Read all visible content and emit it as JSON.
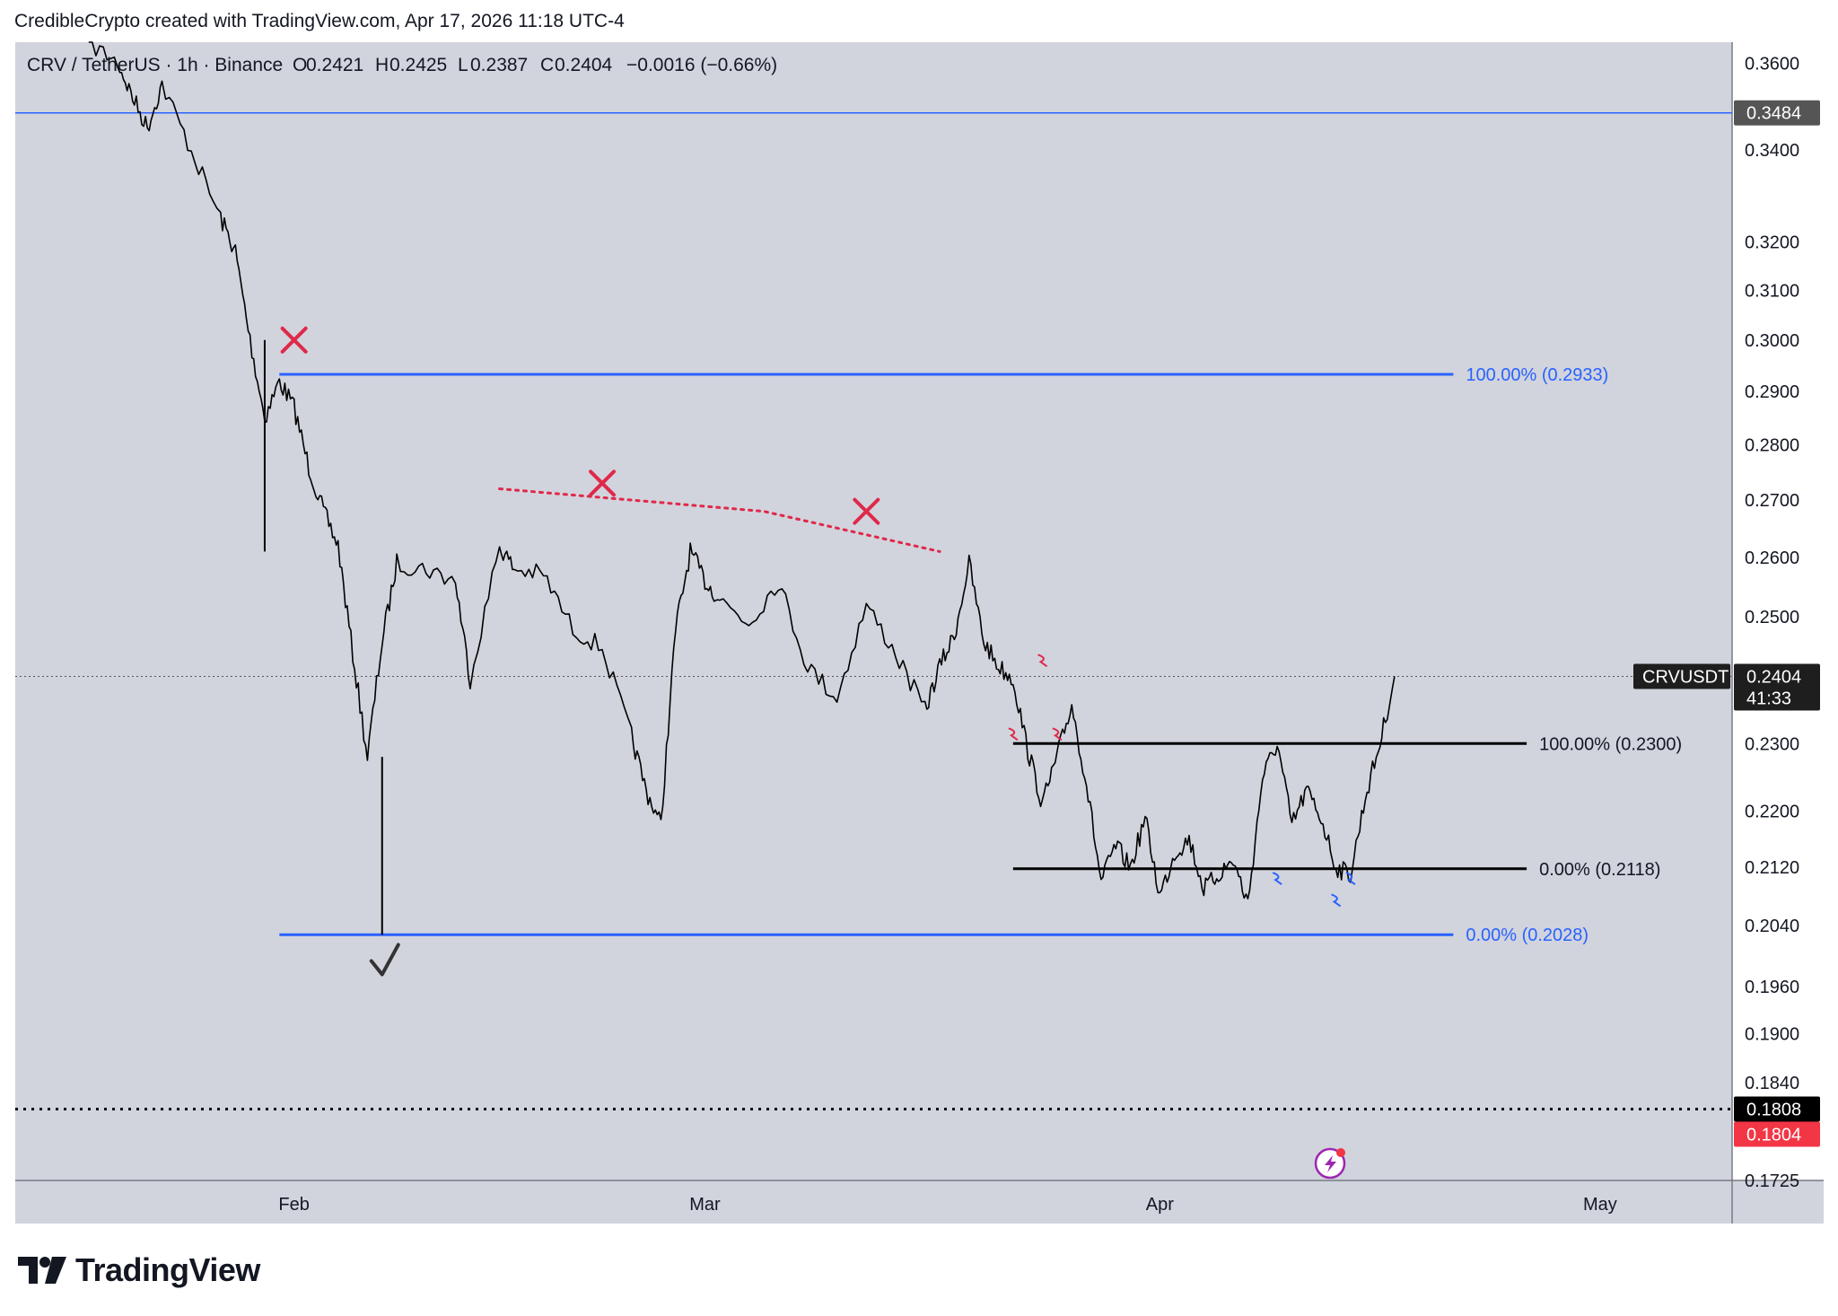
{
  "header": {
    "attribution": "CredibleCrypto created with TradingView.com, Apr 17, 2026 11:18 UTC-4"
  },
  "legend": {
    "symbol": "CRV / TetherUS · 1h · Binance",
    "open_label": "O",
    "open": "0.2421",
    "high_label": "H",
    "high": "0.2425",
    "low_label": "L",
    "low": "0.2387",
    "close_label": "C",
    "close": "0.2404",
    "change": "−0.0016 (−0.66%)"
  },
  "logo": {
    "text": "TradingView"
  },
  "price_badges": {
    "level_high": "0.3484",
    "current_symbol": "CRVUSDT",
    "current_price": "0.2404",
    "countdown": "41:33",
    "level_low_1": "0.1808",
    "level_low_2": "0.1804"
  },
  "colors": {
    "background": "#d1d4dc",
    "candle": "#000000",
    "blue_fib": "#2962ff",
    "black_fib": "#000000",
    "annotation_red": "#e0284a",
    "annotation_blue": "#2962ff",
    "badge_dark": "#555555",
    "badge_black": "#000000",
    "badge_red": "#f23645",
    "lightning": "#9c27b0"
  },
  "chart_data": {
    "type": "line",
    "title": "CRV / TetherUS · 1h · Binance",
    "xlabel": "",
    "ylabel": "",
    "y_scale": "log",
    "ylim": [
      0.1725,
      0.365
    ],
    "yticks": [
      "0.3600",
      "0.3400",
      "0.3200",
      "0.3100",
      "0.3000",
      "0.2900",
      "0.2800",
      "0.2700",
      "0.2600",
      "0.2500",
      "0.2300",
      "0.2200",
      "0.2120",
      "0.2040",
      "0.1960",
      "0.1900",
      "0.1840",
      "0.1725"
    ],
    "xticks": [
      "Feb",
      "Mar",
      "Apr",
      "May"
    ],
    "xlim": [
      "2026-01-13",
      "2026-05-10"
    ],
    "grid": false,
    "series": [
      {
        "x": [
          "2026-01-18",
          "2026-01-20",
          "2026-01-21",
          "2026-01-22",
          "2026-01-23",
          "2026-01-25",
          "2026-01-27",
          "2026-01-28",
          "2026-01-29",
          "2026-01-30",
          "2026-01-31",
          "2026-02-01",
          "2026-02-02",
          "2026-02-03",
          "2026-02-04",
          "2026-02-05",
          "2026-02-06",
          "2026-02-07",
          "2026-02-08",
          "2026-02-10",
          "2026-02-12",
          "2026-02-13",
          "2026-02-15",
          "2026-02-16",
          "2026-02-18",
          "2026-02-20",
          "2026-02-22",
          "2026-02-24",
          "2026-02-25",
          "2026-02-26",
          "2026-02-27",
          "2026-02-28",
          "2026-03-01",
          "2026-03-02",
          "2026-03-04",
          "2026-03-06",
          "2026-03-08",
          "2026-03-10",
          "2026-03-12",
          "2026-03-14",
          "2026-03-16",
          "2026-03-17",
          "2026-03-18",
          "2026-03-19",
          "2026-03-20",
          "2026-03-21",
          "2026-03-22",
          "2026-03-23",
          "2026-03-24",
          "2026-03-25",
          "2026-03-26",
          "2026-03-27",
          "2026-03-28",
          "2026-03-29",
          "2026-03-30",
          "2026-03-31",
          "2026-04-01",
          "2026-04-02",
          "2026-04-03",
          "2026-04-04",
          "2026-04-05",
          "2026-04-06",
          "2026-04-07",
          "2026-04-08",
          "2026-04-09",
          "2026-04-10",
          "2026-04-11",
          "2026-04-12",
          "2026-04-13",
          "2026-04-14",
          "2026-04-15",
          "2026-04-16",
          "2026-04-17"
        ],
        "values": [
          0.365,
          0.36,
          0.352,
          0.345,
          0.355,
          0.34,
          0.325,
          0.318,
          0.3,
          0.285,
          0.292,
          0.287,
          0.276,
          0.268,
          0.262,
          0.244,
          0.228,
          0.246,
          0.259,
          0.258,
          0.256,
          0.24,
          0.262,
          0.258,
          0.257,
          0.248,
          0.245,
          0.231,
          0.223,
          0.218,
          0.248,
          0.261,
          0.256,
          0.253,
          0.249,
          0.256,
          0.242,
          0.237,
          0.252,
          0.244,
          0.235,
          0.242,
          0.247,
          0.259,
          0.246,
          0.242,
          0.24,
          0.229,
          0.221,
          0.228,
          0.236,
          0.224,
          0.21,
          0.215,
          0.212,
          0.219,
          0.208,
          0.214,
          0.216,
          0.209,
          0.211,
          0.213,
          0.207,
          0.225,
          0.23,
          0.218,
          0.223,
          0.219,
          0.212,
          0.211,
          0.222,
          0.23,
          0.2404
        ]
      }
    ],
    "levels": [
      {
        "label": "",
        "value": 0.3484
      },
      {
        "label": "100.00% (0.2933)",
        "value": 0.2933
      },
      {
        "label": "0.00% (0.2028)",
        "value": 0.2028
      },
      {
        "label": "100.00% (0.2300)",
        "value": 0.23
      },
      {
        "label": "0.00% (0.2118)",
        "value": 0.2118
      },
      {
        "label": "",
        "value": 0.1808
      }
    ],
    "annotations": [
      {
        "type": "cross",
        "x": "2026-02-01",
        "y": 0.3
      },
      {
        "type": "cross",
        "x": "2026-02-22",
        "y": 0.273
      },
      {
        "type": "cross",
        "x": "2026-03-12",
        "y": 0.268
      },
      {
        "type": "check",
        "x": "2026-02-07",
        "y": 0.2005
      },
      {
        "type": "trendline",
        "x": [
          "2026-02-15",
          "2026-03-05",
          "2026-03-17"
        ],
        "y": [
          0.272,
          0.268,
          0.261
        ]
      }
    ]
  }
}
